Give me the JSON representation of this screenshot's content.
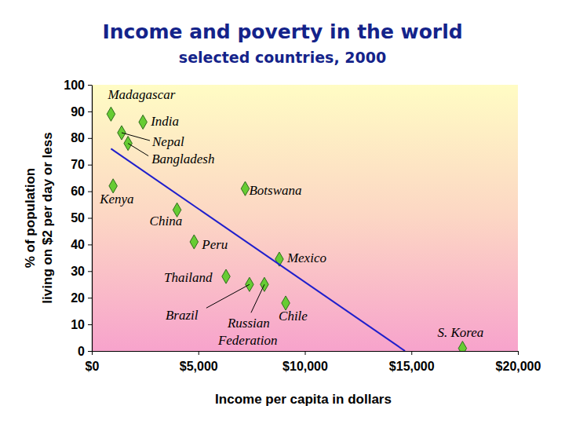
{
  "chart_data": {
    "type": "scatter",
    "title": "Income and poverty in the world",
    "subtitle": "selected countries, 2000",
    "xlabel": "Income per capita in dollars",
    "ylabel": [
      "% of population",
      "living on $2 per day or less"
    ],
    "xlim": [
      0,
      20000
    ],
    "xticks": [
      {
        "value": 0,
        "label": "$0"
      },
      {
        "value": 5000,
        "label": "$5,000"
      },
      {
        "value": 10000,
        "label": "$10,000"
      },
      {
        "value": 15000,
        "label": "$15,000"
      },
      {
        "value": 20000,
        "label": "$20,000"
      }
    ],
    "ylim": [
      0,
      100
    ],
    "yticks": [
      0,
      10,
      20,
      30,
      40,
      50,
      60,
      70,
      80,
      90,
      100
    ],
    "grid": false,
    "series": [
      {
        "type": "scatter",
        "marker": "diamond",
        "color": "#66cc33",
        "labels": [
          "Madagascar",
          "India",
          "Nepal",
          "Bangladesh",
          "Kenya",
          "China",
          "Botswana",
          "Peru",
          "Mexico",
          "Thailand",
          "Brazil",
          "Russian Federation",
          "Chile",
          "S. Korea"
        ],
        "x": [
          900,
          2400,
          1400,
          1700,
          1000,
          4000,
          7200,
          4800,
          8800,
          6300,
          7400,
          8100,
          9100,
          17400
        ],
        "values": [
          89,
          86,
          82,
          78,
          62,
          53,
          61,
          41,
          34.5,
          28,
          25,
          25,
          18,
          1
        ]
      },
      {
        "type": "line",
        "line_style": "solid",
        "color": "#1f1fcc",
        "x": [
          900,
          14700
        ],
        "values": [
          76,
          0
        ]
      }
    ]
  }
}
